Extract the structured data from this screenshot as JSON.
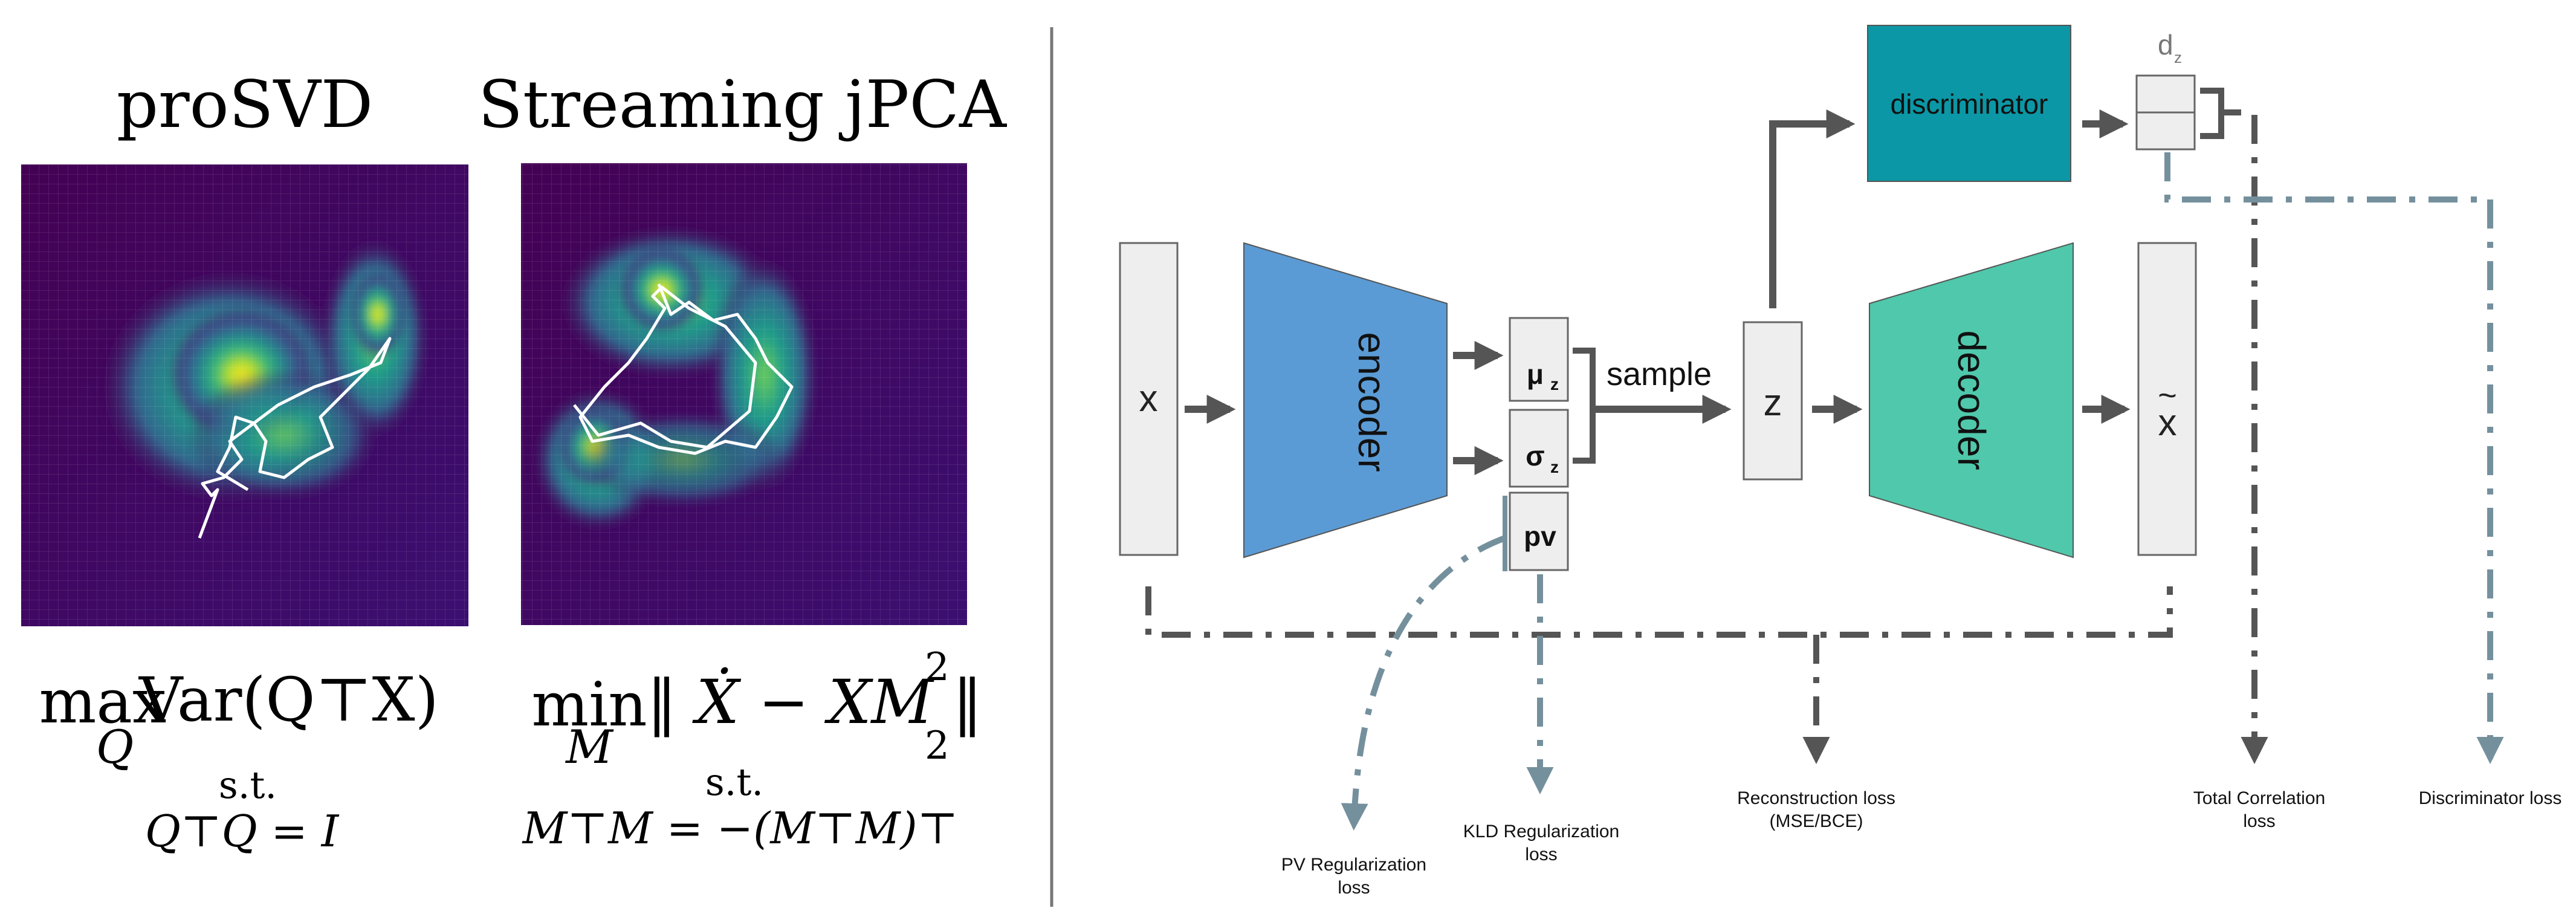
{
  "left_panel": {
    "prosvd": {
      "title": "proSVD",
      "objective_op": "max",
      "objective_sub": "Q",
      "objective_expr": "Var(Q⊤X)",
      "st": "s.t.",
      "constraint": "Q⊤Q = I"
    },
    "jpca": {
      "title": "Streaming jPCA",
      "objective_op": "min",
      "objective_sub": "M",
      "objective_expr": "‖ Ẋ − XM ‖",
      "objective_sup": "2",
      "objective_norm_sub": "2",
      "st": "s.t.",
      "constraint": "M⊤M = −(M⊤M)⊤"
    }
  },
  "vae": {
    "input_label": "x",
    "encoder_label": "encoder",
    "mu_label": "μ",
    "mu_sub": "z",
    "sigma_label": "σ",
    "sigma_sub": "z",
    "pv_label": "pv",
    "sample_label": "sample",
    "z_label": "z",
    "decoder_label": "decoder",
    "output_label": "x",
    "output_tilde": "~",
    "discriminator_label": "discriminator",
    "dz_label": "d",
    "dz_sub": "z",
    "losses": {
      "pv": [
        "PV Regularization",
        "loss"
      ],
      "kld": [
        "KLD Regularization",
        "loss"
      ],
      "reconstruction": [
        "Reconstruction loss",
        "(MSE/BCE)"
      ],
      "total_correlation": [
        "Total Correlation",
        "loss"
      ],
      "discriminator": [
        "Discriminator loss"
      ]
    }
  },
  "colors": {
    "encoder": "#5b9bd5",
    "decoder": "#4fc8ab",
    "discriminator": "#0b97a5",
    "box_fill": "#eeeeee",
    "box_stroke": "#666666",
    "arrow": "#555555",
    "loss_arrow": "#75909d",
    "divider": "#777777"
  }
}
